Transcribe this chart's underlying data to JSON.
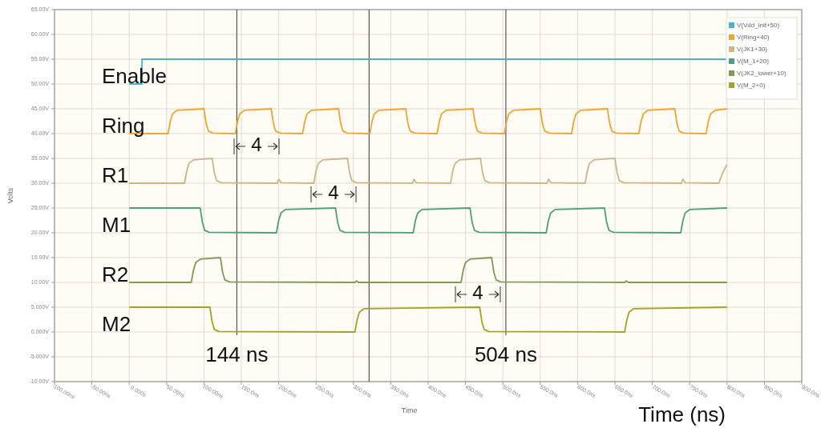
{
  "chart_data": {
    "type": "line",
    "xlabel": "Time",
    "ylabel": "Volts",
    "xlim": [
      -100,
      900
    ],
    "ylim": [
      -10,
      65
    ],
    "xticks": [
      {
        "value": -100,
        "label": "-100.00ns"
      },
      {
        "value": -50,
        "label": "-50.00ns"
      },
      {
        "value": 0,
        "label": "0.000s"
      },
      {
        "value": 50,
        "label": "50.00ns"
      },
      {
        "value": 100,
        "label": "100.00ns"
      },
      {
        "value": 150,
        "label": "150.0ns"
      },
      {
        "value": 200,
        "label": "200.0ns"
      },
      {
        "value": 250,
        "label": "250.0ns"
      },
      {
        "value": 300,
        "label": "300.0ns"
      },
      {
        "value": 350,
        "label": "350.0ns"
      },
      {
        "value": 400,
        "label": "400.0ns"
      },
      {
        "value": 450,
        "label": "450.0ns"
      },
      {
        "value": 500,
        "label": "500.0ns"
      },
      {
        "value": 550,
        "label": "550.0ns"
      },
      {
        "value": 600,
        "label": "600.0ns"
      },
      {
        "value": 650,
        "label": "650.0ns"
      },
      {
        "value": 700,
        "label": "700.0ns"
      },
      {
        "value": 750,
        "label": "750.0ns"
      },
      {
        "value": 800,
        "label": "800.0ns"
      },
      {
        "value": 850,
        "label": "850.0ns"
      },
      {
        "value": 900,
        "label": "900.0ns"
      }
    ],
    "yticks": [
      {
        "value": 65,
        "label": "65.00V"
      },
      {
        "value": 60,
        "label": "60.00V"
      },
      {
        "value": 55,
        "label": "55.00V"
      },
      {
        "value": 50,
        "label": "50.00V"
      },
      {
        "value": 45,
        "label": "45.00V"
      },
      {
        "value": 40,
        "label": "40.00V"
      },
      {
        "value": 35,
        "label": "35.00V"
      },
      {
        "value": 30,
        "label": "30.00V"
      },
      {
        "value": 25,
        "label": "25.00V"
      },
      {
        "value": 20,
        "label": "20.00V"
      },
      {
        "value": 15,
        "label": "15.00V"
      },
      {
        "value": 10,
        "label": "10.00V"
      },
      {
        "value": 5,
        "label": "5.000V"
      },
      {
        "value": 0,
        "label": "0.000V"
      },
      {
        "value": -5,
        "label": "-5.000V"
      },
      {
        "value": -10,
        "label": "-10.00V"
      }
    ],
    "grid": true,
    "legend": "top right",
    "marker": "none",
    "line_style": "solid",
    "series": [
      {
        "name": "V(Vdd_init+50)",
        "color": "#4bb3c9",
        "x": [
          0,
          17,
          17,
          800
        ],
        "values": [
          50,
          50,
          55,
          55
        ]
      },
      {
        "name": "V(Ring+40)",
        "color": "#f0a532",
        "x": [
          0,
          52,
          55,
          58,
          64,
          100,
          103,
          106,
          112,
          142,
          145,
          148,
          154,
          190,
          193,
          196,
          202,
          232,
          235,
          238,
          244,
          280,
          283,
          286,
          292,
          322,
          325,
          328,
          334,
          370,
          373,
          376,
          382,
          412,
          415,
          418,
          424,
          460,
          463,
          466,
          472,
          502,
          505,
          508,
          514,
          550,
          553,
          556,
          562,
          592,
          595,
          598,
          604,
          640,
          643,
          646,
          652,
          682,
          685,
          688,
          694,
          730,
          733,
          736,
          742,
          772,
          775,
          778,
          784,
          800
        ],
        "values": [
          40,
          40,
          42.5,
          44,
          44.7,
          45,
          42,
          40.5,
          40.1,
          40,
          42.5,
          44,
          44.7,
          45,
          42,
          40.5,
          40.1,
          40,
          42.5,
          44,
          44.7,
          45,
          42,
          40.5,
          40.1,
          40,
          42.5,
          44,
          44.7,
          45,
          42,
          40.5,
          40.1,
          40,
          42.5,
          44,
          44.7,
          45,
          42,
          40.5,
          40.1,
          40,
          42.5,
          44,
          44.7,
          45,
          42,
          40.5,
          40.1,
          40,
          42.5,
          44,
          44.7,
          45,
          42,
          40.5,
          40.1,
          40,
          42.5,
          44,
          44.7,
          45,
          42,
          40.5,
          40.1,
          40,
          42.5,
          44,
          44.7,
          45
        ]
      },
      {
        "name": "V(JK1+30)",
        "color": "#cbb785",
        "x": [
          0,
          74,
          77,
          80,
          86,
          111,
          114,
          117,
          123,
          198,
          200,
          203,
          247,
          250,
          253,
          259,
          292,
          295,
          298,
          304,
          379,
          381,
          384,
          430,
          433,
          436,
          442,
          470,
          473,
          476,
          482,
          559,
          561,
          564,
          610,
          613,
          616,
          622,
          650,
          653,
          656,
          662,
          739,
          741,
          744,
          789,
          794,
          800
        ],
        "values": [
          30,
          30,
          32.5,
          34,
          34.7,
          35,
          32,
          30.5,
          30.1,
          30,
          30.8,
          30.1,
          30,
          32.5,
          34,
          34.7,
          35,
          32,
          30.5,
          30.1,
          30,
          30.8,
          30.1,
          30,
          32.5,
          34,
          34.7,
          35,
          32,
          30.5,
          30.1,
          30,
          30.8,
          30.1,
          30,
          32.5,
          34,
          34.7,
          35,
          32,
          30.5,
          30.1,
          30,
          30.8,
          30.1,
          30,
          32,
          33.8
        ]
      },
      {
        "name": "V(M_1+20)",
        "color": "#4f9e7f",
        "x": [
          0,
          95,
          98,
          101,
          107,
          197,
          200,
          203,
          209,
          276,
          279,
          282,
          288,
          380,
          383,
          386,
          392,
          456,
          459,
          462,
          468,
          558,
          561,
          564,
          570,
          636,
          639,
          642,
          648,
          738,
          741,
          744,
          750,
          800
        ],
        "values": [
          25,
          25,
          22,
          20.5,
          20.1,
          20,
          22.5,
          24,
          24.7,
          25,
          22,
          20.5,
          20.1,
          20,
          22.5,
          24,
          24.7,
          25,
          22,
          20.5,
          20.1,
          20,
          22.5,
          24,
          24.7,
          25,
          22,
          20.5,
          20.1,
          20,
          22.5,
          24,
          24.7,
          25
        ]
      },
      {
        "name": "V(JK2_lower+10)",
        "color": "#7f9a57",
        "x": [
          0,
          83,
          86,
          89,
          95,
          122,
          125,
          128,
          134,
          302,
          304,
          307,
          444,
          447,
          450,
          456,
          485,
          488,
          491,
          497,
          663,
          665,
          668,
          800
        ],
        "values": [
          10,
          10,
          12.5,
          14,
          14.7,
          15,
          12,
          10.5,
          10.1,
          10,
          10.3,
          10,
          10,
          12.5,
          14,
          14.7,
          15,
          12,
          10.5,
          10.1,
          10,
          10.3,
          10,
          10
        ]
      },
      {
        "name": "V(M_2+0)",
        "color": "#a5a128",
        "x": [
          0,
          108,
          111,
          114,
          120,
          302,
          305,
          308,
          314,
          469,
          472,
          475,
          481,
          663,
          666,
          669,
          675,
          800
        ],
        "values": [
          5,
          5,
          2,
          0.5,
          0.1,
          0,
          2.5,
          4,
          4.7,
          5,
          2,
          0.5,
          0.1,
          0,
          2.5,
          4,
          4.7,
          5
        ]
      }
    ],
    "ref_lines": [
      {
        "axis": "x",
        "value": 144,
        "label": "144 ns",
        "color": "#555555"
      },
      {
        "axis": "x",
        "value": 321,
        "color": "#555555"
      },
      {
        "axis": "x",
        "value": 504,
        "label": "504 ns",
        "color": "#555555"
      }
    ],
    "annotations": [
      "Enable",
      "Ring",
      "R1",
      "M1",
      "R2",
      "M2",
      "4",
      "4",
      "4",
      "Time (ns)"
    ]
  }
}
